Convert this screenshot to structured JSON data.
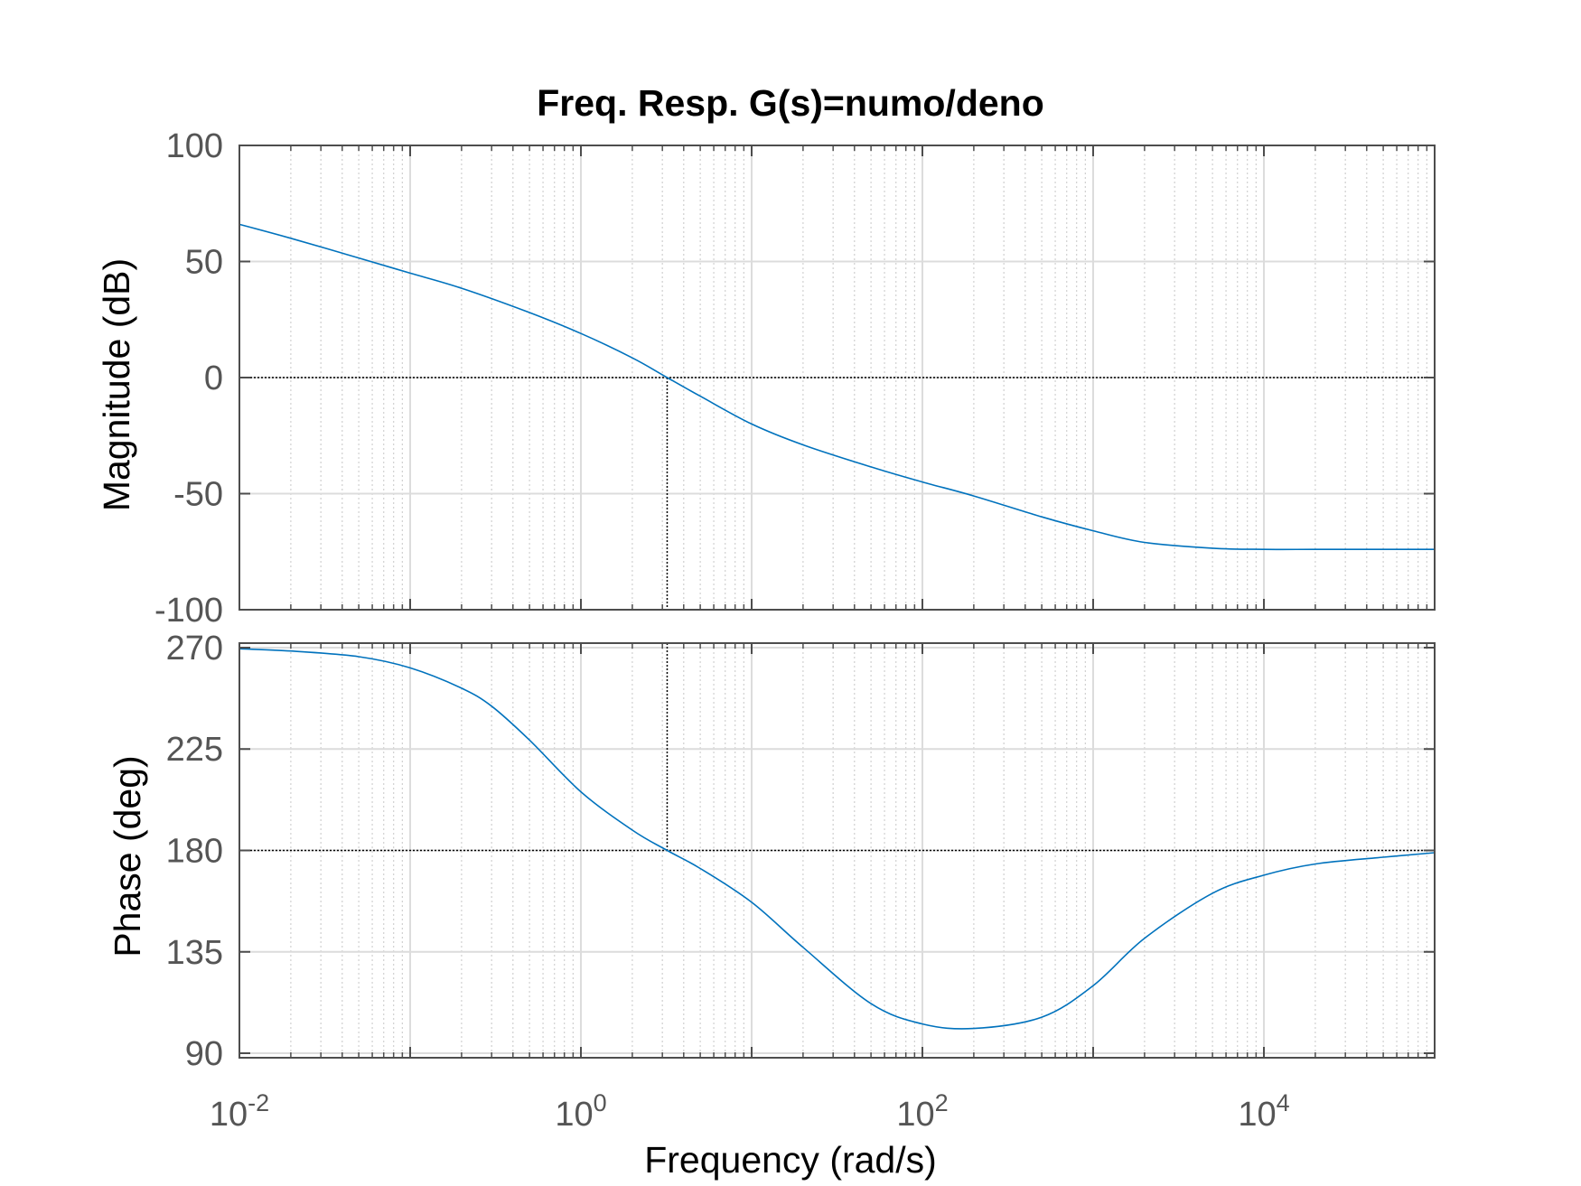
{
  "chart_data": [
    {
      "type": "line",
      "panel": "magnitude",
      "title": "Freq. Resp.  G(s)=numo/deno",
      "xlabel": "",
      "ylabel": "Magnitude (dB)",
      "xscale": "log",
      "xlim": [
        0.01,
        100000
      ],
      "ylim": [
        -100,
        100
      ],
      "yticks": [
        100,
        50,
        0,
        -50,
        -100
      ],
      "yticklabels": [
        "100",
        "50",
        "0",
        "-50",
        "-100"
      ],
      "grid": true,
      "line_color": "#0072BD",
      "series": [
        {
          "x": [
            0.01,
            0.02,
            0.05,
            0.1,
            0.2,
            0.5,
            1,
            2,
            3.2,
            5,
            10,
            20,
            50,
            100,
            200,
            500,
            1000,
            2000,
            5000,
            10000,
            20000,
            50000,
            100000
          ],
          "y": [
            66,
            60,
            51.5,
            45,
            38.5,
            28,
            19,
            8.5,
            0,
            -8,
            -20,
            -29,
            -38.5,
            -45,
            -51,
            -60,
            -66,
            -71,
            -73.5,
            -74,
            -74,
            -74,
            -74
          ]
        }
      ],
      "crossover_marker": {
        "x": 3.2,
        "y": 0
      }
    },
    {
      "type": "line",
      "panel": "phase",
      "xlabel": "Frequency  (rad/s)",
      "ylabel": "Phase (deg)",
      "xscale": "log",
      "xlim": [
        0.01,
        100000
      ],
      "xticks": [
        0.01,
        1,
        100,
        10000
      ],
      "xtick_base": "10",
      "xtick_exponents": [
        "-2",
        "0",
        "2",
        "4"
      ],
      "ylim": [
        88,
        272
      ],
      "yticks": [
        270,
        225,
        180,
        135,
        90
      ],
      "yticklabels": [
        "270",
        "225",
        "180",
        "135",
        "90"
      ],
      "grid": true,
      "line_color": "#0072BD",
      "series": [
        {
          "x": [
            0.01,
            0.02,
            0.05,
            0.1,
            0.2,
            0.3,
            0.5,
            1,
            2,
            3.2,
            5,
            10,
            20,
            50,
            100,
            200,
            500,
            1000,
            2000,
            5000,
            10000,
            20000,
            50000,
            100000
          ],
          "y": [
            269.5,
            268.5,
            266,
            261,
            252,
            244,
            229,
            206,
            189,
            180,
            172,
            157,
            137,
            112,
            103,
            101,
            106,
            120,
            141,
            161,
            169,
            174,
            177,
            179
          ]
        }
      ],
      "reference_line": {
        "y": 180
      },
      "crossover_marker": {
        "x": 3.2,
        "y": 180
      }
    }
  ]
}
